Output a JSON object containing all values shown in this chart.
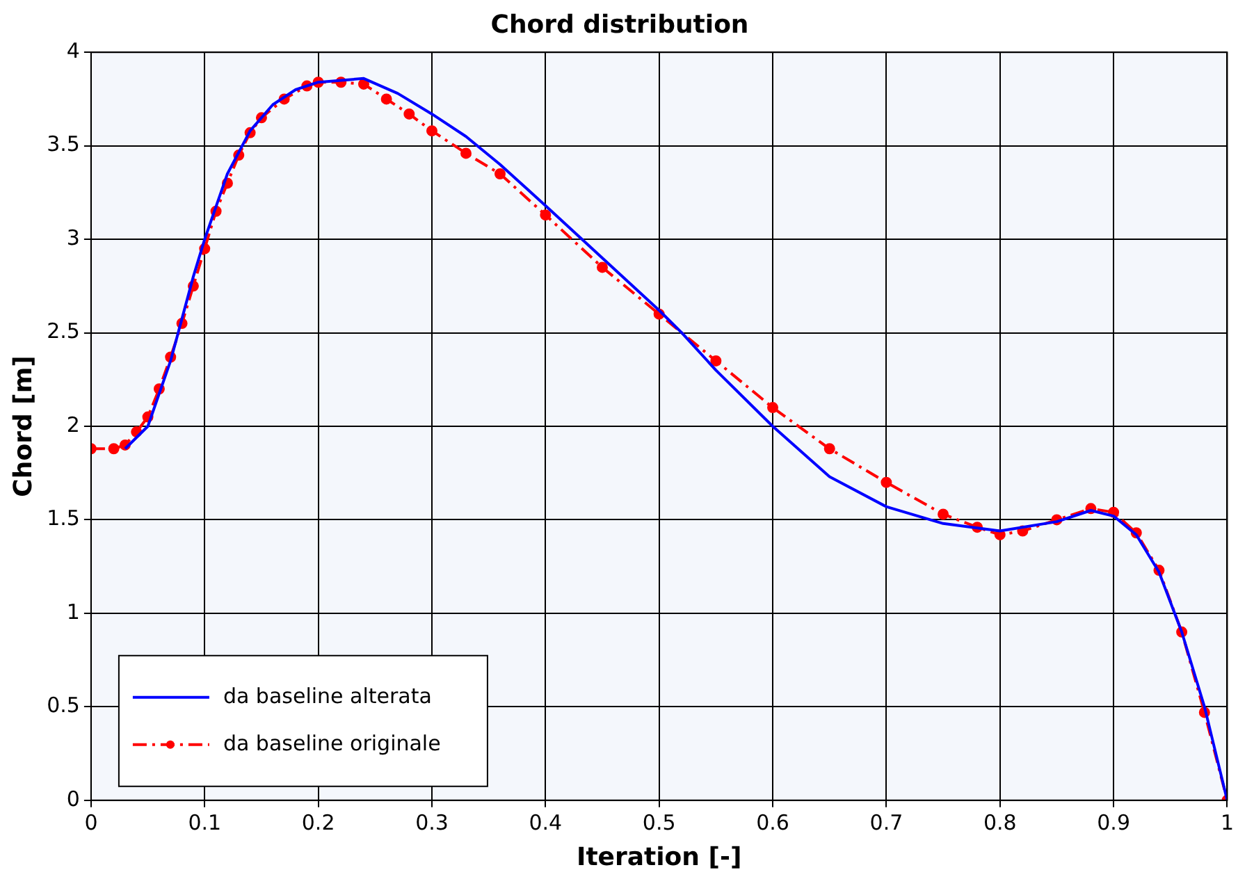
{
  "chart_data": {
    "type": "line",
    "title": "Chord distribution",
    "xlabel": "Iteration [-]",
    "ylabel": "Chord [m]",
    "xlim": [
      0,
      1
    ],
    "xticks": [
      0,
      0.1,
      0.2,
      0.3,
      0.4,
      0.5,
      0.6,
      0.7,
      0.8,
      0.9,
      1
    ],
    "ylim": [
      0,
      4
    ],
    "yticks": [
      0,
      0.5,
      1,
      1.5,
      2,
      2.5,
      3,
      3.5,
      4
    ],
    "grid": true,
    "legend": "bottom left",
    "series": [
      {
        "name": "da baseline alterata",
        "color": "#0000ff",
        "marker": "none",
        "line_style": "solid",
        "x": [
          0.03,
          0.05,
          0.07,
          0.09,
          0.1,
          0.12,
          0.14,
          0.16,
          0.18,
          0.2,
          0.24,
          0.27,
          0.3,
          0.33,
          0.36,
          0.4,
          0.45,
          0.5,
          0.52,
          0.55,
          0.6,
          0.65,
          0.7,
          0.75,
          0.8,
          0.85,
          0.88,
          0.9,
          0.92,
          0.94,
          0.96,
          0.98,
          1.0
        ],
        "values": [
          1.88,
          2.0,
          2.35,
          2.8,
          3.0,
          3.35,
          3.58,
          3.72,
          3.8,
          3.84,
          3.86,
          3.78,
          3.67,
          3.55,
          3.4,
          3.18,
          2.9,
          2.62,
          2.5,
          2.3,
          2.0,
          1.73,
          1.57,
          1.48,
          1.44,
          1.49,
          1.55,
          1.52,
          1.42,
          1.22,
          0.9,
          0.5,
          0
        ]
      },
      {
        "name": "da baseline originale",
        "color": "#ff0000",
        "marker": "circle",
        "line_style": "dashed",
        "x": [
          0,
          0.02,
          0.03,
          0.04,
          0.05,
          0.06,
          0.07,
          0.08,
          0.09,
          0.1,
          0.11,
          0.12,
          0.13,
          0.14,
          0.15,
          0.17,
          0.19,
          0.2,
          0.22,
          0.24,
          0.26,
          0.28,
          0.3,
          0.33,
          0.36,
          0.4,
          0.45,
          0.5,
          0.55,
          0.6,
          0.65,
          0.7,
          0.75,
          0.78,
          0.8,
          0.82,
          0.85,
          0.88,
          0.9,
          0.92,
          0.94,
          0.96,
          0.98,
          1.0
        ],
        "values": [
          1.88,
          1.88,
          1.9,
          1.97,
          2.05,
          2.2,
          2.37,
          2.55,
          2.75,
          2.95,
          3.15,
          3.3,
          3.45,
          3.57,
          3.65,
          3.75,
          3.82,
          3.84,
          3.84,
          3.83,
          3.75,
          3.67,
          3.58,
          3.46,
          3.35,
          3.13,
          2.85,
          2.6,
          2.35,
          2.1,
          1.88,
          1.7,
          1.53,
          1.46,
          1.42,
          1.44,
          1.5,
          1.56,
          1.54,
          1.43,
          1.23,
          0.9,
          0.47,
          0
        ]
      }
    ]
  }
}
